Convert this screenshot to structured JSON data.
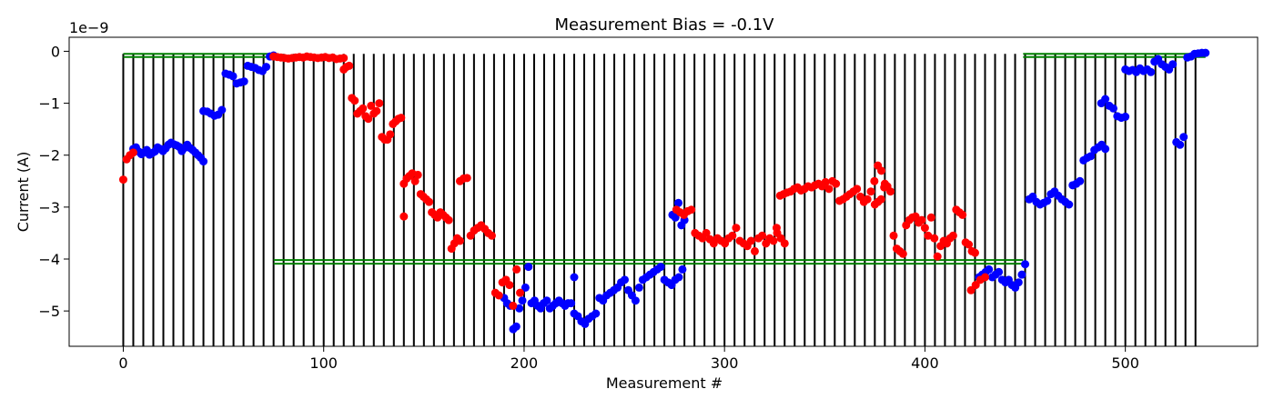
{
  "chart_data": {
    "type": "scatter",
    "title": "Measurement Bias = -0.1V",
    "xlabel": "Measurement #",
    "ylabel": "Current (A)",
    "y_scale_label": "1e−9",
    "xlim": [
      -27,
      566
    ],
    "ylim": [
      -5.68,
      0.27
    ],
    "x_ticks": [
      0,
      100,
      200,
      300,
      400,
      500
    ],
    "x_tick_labels": [
      "0",
      "100",
      "200",
      "300",
      "400",
      "500"
    ],
    "y_ticks": [
      0,
      -1,
      -2,
      -3,
      -4,
      -5
    ],
    "y_tick_labels": [
      "0",
      "−1",
      "−2",
      "−3",
      "−4",
      "−5"
    ],
    "grid": false,
    "colors": {
      "blue": "#0000ff",
      "red": "#ff0000",
      "boundary": "#000000",
      "threshold": "#008000"
    },
    "segment_boundaries_start": 0,
    "segment_boundaries_step": 5,
    "segment_boundaries_end": 535,
    "threshold_lines": [
      {
        "x_start": 0,
        "x_end": 75,
        "y": -0.05
      },
      {
        "x_start": 0,
        "x_end": 75,
        "y": -0.11
      },
      {
        "x_start": 75,
        "x_end": 449,
        "y": -4.02
      },
      {
        "x_start": 75,
        "x_end": 449,
        "y": -4.09
      },
      {
        "x_start": 449,
        "x_end": 540,
        "y": -0.05
      },
      {
        "x_start": 449,
        "x_end": 540,
        "y": -0.11
      }
    ],
    "series": [
      {
        "color": "blue",
        "segments": [
          {
            "x_start": 5,
            "x_end": 40,
            "y": [
              -1.88,
              -1.85,
              -1.93,
              -1.98,
              -1.95,
              -1.9,
              -1.99,
              -1.96,
              -1.93,
              -1.85,
              -1.88,
              -1.92,
              -1.87,
              -1.8,
              -1.76,
              -1.79,
              -1.81,
              -1.84,
              -1.92,
              -1.86,
              -1.8,
              -1.86,
              -1.9,
              -1.95,
              -2.0,
              -2.05,
              -2.12
            ]
          },
          {
            "x_start": 40,
            "x_end": 75,
            "y": [
              -1.15,
              -1.16,
              -1.2,
              -1.24,
              -1.22,
              -1.13,
              -0.43,
              -0.45,
              -0.48,
              -0.62,
              -0.6,
              -0.58,
              -0.28,
              -0.3,
              -0.32,
              -0.36,
              -0.38,
              -0.3,
              -0.1,
              -0.08
            ]
          },
          {
            "x_start": 190,
            "x_end": 225,
            "y": [
              -4.75,
              -4.85,
              -4.9,
              -5.35,
              -5.3,
              -4.95,
              -4.8,
              -4.55,
              -4.15,
              -4.85,
              -4.8,
              -4.9,
              -4.95,
              -4.85,
              -4.8,
              -4.95,
              -4.9,
              -4.85,
              -4.8,
              -4.85,
              -4.9,
              -4.85,
              -4.85,
              -4.35
            ]
          },
          {
            "x_start": 225,
            "x_end": 279,
            "y": [
              -5.05,
              -5.1,
              -5.2,
              -5.25,
              -5.15,
              -5.1,
              -5.05,
              -4.75,
              -4.8,
              -4.7,
              -4.65,
              -4.6,
              -4.55,
              -4.45,
              -4.4,
              -4.6,
              -4.7,
              -4.8,
              -4.55,
              -4.4,
              -4.35,
              -4.3,
              -4.25,
              -4.2,
              -4.15,
              -4.4,
              -4.45,
              -4.5,
              -4.4,
              -4.35,
              -4.2
            ]
          },
          {
            "x_start": 274,
            "x_end": 280,
            "y": [
              -3.15,
              -3.2,
              -2.92,
              -3.35,
              -3.25
            ]
          },
          {
            "x_start": 427,
            "x_end": 450,
            "y": [
              -4.35,
              -4.3,
              -4.25,
              -4.2,
              -4.35,
              -4.3,
              -4.25,
              -4.4,
              -4.45,
              -4.4,
              -4.5,
              -4.55,
              -4.45,
              -4.3,
              -4.1
            ]
          },
          {
            "x_start": 452,
            "x_end": 490,
            "y": [
              -2.85,
              -2.8,
              -2.9,
              -2.95,
              -2.92,
              -2.88,
              -2.75,
              -2.7,
              -2.78,
              -2.85,
              -2.9,
              -2.95,
              -2.58,
              -2.55,
              -2.5,
              -2.1,
              -2.05,
              -2.02,
              -1.9,
              -1.85,
              -1.8,
              -1.88
            ]
          },
          {
            "x_start": 488,
            "x_end": 500,
            "y": [
              -1.0,
              -0.92,
              -1.05,
              -1.1,
              -1.25,
              -1.28,
              -1.26
            ]
          },
          {
            "x_start": 500,
            "x_end": 540,
            "y": [
              -0.35,
              -0.38,
              -0.36,
              -0.4,
              -0.33,
              -0.38,
              -0.35,
              -0.4,
              -0.2,
              -0.15,
              -0.25,
              -0.3,
              -0.35,
              -0.25,
              -1.75,
              -1.8,
              -1.65,
              -0.12,
              -0.1,
              -0.05,
              -0.04,
              -0.03,
              -0.03
            ]
          }
        ]
      },
      {
        "color": "red",
        "segments": [
          {
            "x_start": 0,
            "x_end": 5,
            "y": [
              -2.47,
              -2.08,
              -2.0,
              -1.95
            ]
          },
          {
            "x_start": 75,
            "x_end": 110,
            "y": [
              -0.1,
              -0.11,
              -0.12,
              -0.13,
              -0.14,
              -0.13,
              -0.12,
              -0.11,
              -0.12,
              -0.1,
              -0.11,
              -0.12,
              -0.13,
              -0.12,
              -0.11,
              -0.13,
              -0.12,
              -0.15,
              -0.14,
              -0.13
            ]
          },
          {
            "x_start": 110,
            "x_end": 140,
            "y": [
              -0.35,
              -0.3,
              -0.28,
              -0.9,
              -0.95,
              -1.2,
              -1.15,
              -1.1,
              -1.25,
              -1.3,
              -1.05,
              -1.2,
              -1.15,
              -1.0,
              -1.65,
              -1.7,
              -1.7,
              -1.6,
              -1.4,
              -1.35,
              -1.3,
              -1.28,
              -3.18
            ]
          },
          {
            "x_start": 140,
            "x_end": 168,
            "y": [
              -2.55,
              -2.45,
              -2.4,
              -2.35,
              -2.5,
              -2.38,
              -2.75,
              -2.8,
              -2.85,
              -2.9,
              -3.1,
              -3.15,
              -3.2,
              -3.1,
              -3.15,
              -3.2,
              -3.25,
              -3.8,
              -3.7,
              -3.6,
              -3.65
            ]
          },
          {
            "x_start": 168,
            "x_end": 198,
            "y": [
              -2.5,
              -2.45,
              -2.44,
              -3.55,
              -3.45,
              -3.4,
              -3.35,
              -3.42,
              -3.5,
              -3.55,
              -4.65,
              -4.7,
              -4.45,
              -4.4,
              -4.5,
              -4.9,
              -4.2,
              -4.65
            ]
          },
          {
            "x_start": 276,
            "x_end": 330,
            "y": [
              -3.05,
              -3.1,
              -3.15,
              -3.08,
              -3.05,
              -3.5,
              -3.55,
              -3.6,
              -3.5,
              -3.62,
              -3.7,
              -3.6,
              -3.65,
              -3.7,
              -3.6,
              -3.55,
              -3.4,
              -3.65,
              -3.7,
              -3.75,
              -3.65,
              -3.85,
              -3.6,
              -3.55,
              -3.7,
              -3.6,
              -3.65,
              -3.5,
              -3.6,
              -3.7
            ]
          },
          {
            "x_start": 326,
            "x_end": 380,
            "y": [
              -3.4,
              -2.78,
              -2.75,
              -2.72,
              -2.7,
              -2.65,
              -2.62,
              -2.68,
              -2.65,
              -2.6,
              -2.62,
              -2.58,
              -2.55,
              -2.6,
              -2.52,
              -2.65,
              -2.5,
              -2.55,
              -2.88,
              -2.85,
              -2.8,
              -2.75,
              -2.7,
              -2.65,
              -2.8,
              -2.9,
              -2.85,
              -2.7,
              -2.5,
              -2.2,
              -2.3,
              -2.55
            ]
          },
          {
            "x_start": 375,
            "x_end": 425,
            "y": [
              -2.95,
              -2.9,
              -2.85,
              -2.62,
              -2.6,
              -2.7,
              -3.55,
              -3.8,
              -3.85,
              -3.9,
              -3.35,
              -3.25,
              -3.2,
              -3.18,
              -3.3,
              -3.25,
              -3.4,
              -3.55,
              -3.2,
              -3.6,
              -3.95,
              -3.75,
              -3.65,
              -3.7,
              -3.6,
              -3.55,
              -3.05,
              -3.1,
              -3.15,
              -3.68,
              -3.72,
              -3.85,
              -3.88
            ]
          },
          {
            "x_start": 423,
            "x_end": 430,
            "y": [
              -4.6,
              -4.5,
              -4.4,
              -4.35
            ]
          }
        ]
      }
    ]
  }
}
